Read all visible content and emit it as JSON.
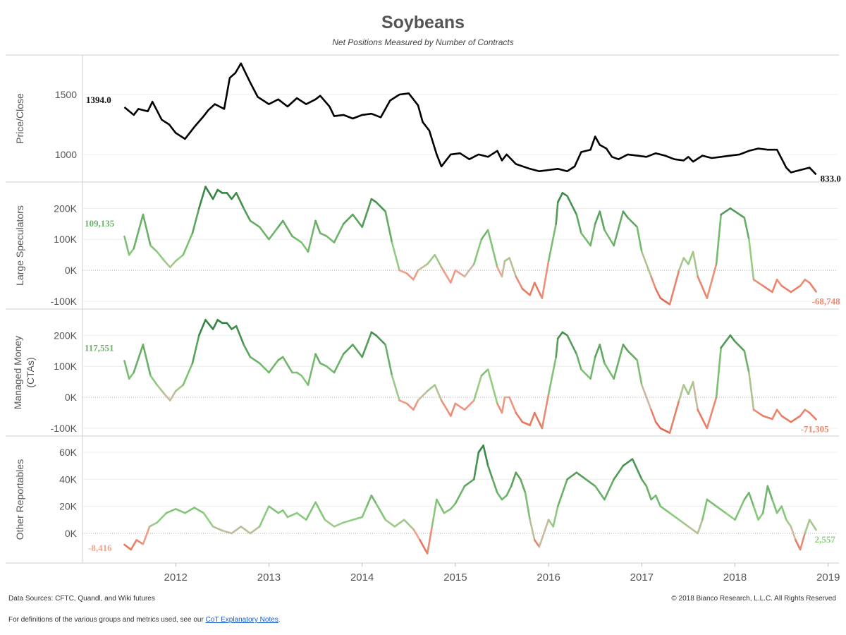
{
  "title": "Soybeans",
  "subtitle": "Net Positions Measured by Number of Contracts",
  "footer": {
    "sources": "Data Sources: CFTC, Quandl, and Wiki futures",
    "copyright": "© 2018 Bianco Research, L.L.C. All Rights Reserved",
    "definitions_prefix": "For definitions of the various groups and metrics used, see our",
    "definitions_link": "CoT Explanatory Notes",
    "definitions_suffix": "."
  },
  "colors": {
    "price_line": "#000000",
    "positive_dark": "#2e7d3e",
    "positive_light": "#8fcf80",
    "neutral": "#cbb8a0",
    "negative_light": "#f2a58e",
    "negative_dark": "#e06048",
    "grid": "#ececec",
    "zero_line": "#aaaaaa"
  },
  "chart_data": [
    {
      "type": "line",
      "panel": "price",
      "ylabel": "Price/Close",
      "ylim": [
        770,
        1830
      ],
      "yticks": [
        1000,
        1500
      ],
      "ytick_labels": [
        "1000",
        "1500"
      ],
      "start_label": "1394.0",
      "end_label": "833.0",
      "series": [
        {
          "x": [
            2011.45,
            2011.55,
            2011.6,
            2011.7,
            2011.75,
            2011.85,
            2011.93,
            2012.0,
            2012.1,
            2012.2,
            2012.3,
            2012.35,
            2012.42,
            2012.52,
            2012.58,
            2012.64,
            2012.7,
            2012.8,
            2012.88,
            2013.0,
            2013.1,
            2013.2,
            2013.3,
            2013.4,
            2013.5,
            2013.55,
            2013.65,
            2013.7,
            2013.8,
            2013.9,
            2014.0,
            2014.1,
            2014.2,
            2014.3,
            2014.4,
            2014.5,
            2014.6,
            2014.65,
            2014.72,
            2014.8,
            2014.85,
            2014.95,
            2015.05,
            2015.15,
            2015.25,
            2015.35,
            2015.45,
            2015.5,
            2015.55,
            2015.65,
            2015.8,
            2015.9,
            2016.0,
            2016.1,
            2016.2,
            2016.28,
            2016.35,
            2016.45,
            2016.5,
            2016.55,
            2016.62,
            2016.68,
            2016.75,
            2016.85,
            2016.95,
            2017.05,
            2017.15,
            2017.25,
            2017.35,
            2017.45,
            2017.5,
            2017.55,
            2017.65,
            2017.75,
            2017.85,
            2017.95,
            2018.05,
            2018.15,
            2018.25,
            2018.35,
            2018.45,
            2018.55,
            2018.6,
            2018.7,
            2018.8,
            2018.87
          ],
          "y": [
            1394,
            1330,
            1380,
            1360,
            1440,
            1290,
            1250,
            1180,
            1130,
            1230,
            1320,
            1370,
            1420,
            1380,
            1640,
            1680,
            1760,
            1600,
            1480,
            1420,
            1460,
            1400,
            1470,
            1420,
            1460,
            1490,
            1400,
            1320,
            1330,
            1300,
            1330,
            1340,
            1310,
            1450,
            1500,
            1510,
            1410,
            1270,
            1200,
            1000,
            900,
            1000,
            1010,
            960,
            1000,
            980,
            1030,
            950,
            1000,
            920,
            880,
            860,
            870,
            880,
            860,
            900,
            1020,
            1040,
            1150,
            1080,
            1050,
            980,
            960,
            1000,
            990,
            980,
            1010,
            990,
            960,
            950,
            980,
            940,
            990,
            970,
            980,
            990,
            1000,
            1030,
            1050,
            1040,
            1040,
            890,
            850,
            870,
            890,
            833
          ]
        }
      ]
    },
    {
      "type": "line",
      "panel": "large_speculators",
      "ylabel": "Large Speculators",
      "ylim": [
        -125000,
        285000
      ],
      "yticks": [
        -100000,
        0,
        100000,
        200000
      ],
      "ytick_labels": [
        "-100K",
        "0K",
        "100K",
        "200K"
      ],
      "start_label": "109,135",
      "end_label": "-68,748",
      "series": [
        {
          "x": [
            2011.45,
            2011.5,
            2011.55,
            2011.65,
            2011.73,
            2011.8,
            2011.88,
            2011.94,
            2012.0,
            2012.08,
            2012.18,
            2012.25,
            2012.32,
            2012.4,
            2012.45,
            2012.5,
            2012.55,
            2012.6,
            2012.65,
            2012.73,
            2012.8,
            2012.9,
            2013.0,
            2013.1,
            2013.15,
            2013.25,
            2013.3,
            2013.35,
            2013.42,
            2013.5,
            2013.55,
            2013.62,
            2013.7,
            2013.8,
            2013.9,
            2014.0,
            2014.1,
            2014.15,
            2014.25,
            2014.32,
            2014.4,
            2014.48,
            2014.55,
            2014.6,
            2014.7,
            2014.78,
            2014.85,
            2014.95,
            2015.0,
            2015.1,
            2015.2,
            2015.28,
            2015.35,
            2015.45,
            2015.5,
            2015.53,
            2015.58,
            2015.65,
            2015.72,
            2015.8,
            2015.85,
            2015.93,
            2016.0,
            2016.08,
            2016.1,
            2016.15,
            2016.2,
            2016.3,
            2016.35,
            2016.45,
            2016.5,
            2016.55,
            2016.6,
            2016.7,
            2016.8,
            2016.85,
            2016.95,
            2017.0,
            2017.1,
            2017.15,
            2017.2,
            2017.3,
            2017.4,
            2017.45,
            2017.5,
            2017.55,
            2017.6,
            2017.7,
            2017.8,
            2017.85,
            2017.95,
            2018.0,
            2018.1,
            2018.15,
            2018.2,
            2018.25,
            2018.3,
            2018.4,
            2018.45,
            2018.5,
            2018.6,
            2018.7,
            2018.75,
            2018.8,
            2018.87
          ],
          "y": [
            109135,
            50000,
            70000,
            180000,
            80000,
            60000,
            30000,
            10000,
            30000,
            50000,
            120000,
            200000,
            270000,
            230000,
            260000,
            250000,
            250000,
            230000,
            250000,
            200000,
            160000,
            140000,
            100000,
            140000,
            160000,
            110000,
            100000,
            90000,
            60000,
            160000,
            120000,
            110000,
            90000,
            150000,
            180000,
            140000,
            230000,
            220000,
            190000,
            90000,
            0,
            -10000,
            -30000,
            0,
            20000,
            50000,
            10000,
            -40000,
            0,
            -20000,
            20000,
            100000,
            130000,
            10000,
            -20000,
            30000,
            40000,
            -20000,
            -60000,
            -80000,
            -40000,
            -90000,
            30000,
            150000,
            220000,
            250000,
            240000,
            180000,
            120000,
            80000,
            150000,
            190000,
            130000,
            80000,
            190000,
            170000,
            140000,
            60000,
            -20000,
            -60000,
            -90000,
            -110000,
            0,
            40000,
            20000,
            60000,
            -20000,
            -90000,
            20000,
            180000,
            200000,
            190000,
            170000,
            100000,
            -30000,
            -40000,
            -50000,
            -70000,
            -30000,
            -50000,
            -70000,
            -50000,
            -30000,
            -40000,
            -68748
          ]
        }
      ]
    },
    {
      "type": "line",
      "panel": "managed_money",
      "ylabel": "Managed Money (CTAs)",
      "ylim": [
        -125000,
        285000
      ],
      "yticks": [
        -100000,
        0,
        100000,
        200000
      ],
      "ytick_labels": [
        "-100K",
        "0K",
        "100K",
        "200K"
      ],
      "start_label": "117,551",
      "end_label": "-71,305",
      "series": [
        {
          "x": [
            2011.45,
            2011.5,
            2011.55,
            2011.65,
            2011.73,
            2011.8,
            2011.88,
            2011.94,
            2012.0,
            2012.08,
            2012.18,
            2012.25,
            2012.32,
            2012.4,
            2012.45,
            2012.5,
            2012.55,
            2012.6,
            2012.65,
            2012.73,
            2012.8,
            2012.9,
            2013.0,
            2013.1,
            2013.15,
            2013.25,
            2013.3,
            2013.35,
            2013.42,
            2013.5,
            2013.55,
            2013.62,
            2013.7,
            2013.8,
            2013.9,
            2014.0,
            2014.1,
            2014.15,
            2014.25,
            2014.32,
            2014.4,
            2014.48,
            2014.55,
            2014.6,
            2014.7,
            2014.78,
            2014.85,
            2014.95,
            2015.0,
            2015.1,
            2015.2,
            2015.28,
            2015.35,
            2015.45,
            2015.5,
            2015.53,
            2015.58,
            2015.65,
            2015.72,
            2015.8,
            2015.85,
            2015.93,
            2016.0,
            2016.08,
            2016.1,
            2016.15,
            2016.2,
            2016.3,
            2016.35,
            2016.45,
            2016.5,
            2016.55,
            2016.6,
            2016.7,
            2016.8,
            2016.85,
            2016.95,
            2017.0,
            2017.1,
            2017.15,
            2017.2,
            2017.3,
            2017.4,
            2017.45,
            2017.5,
            2017.55,
            2017.6,
            2017.7,
            2017.8,
            2017.85,
            2017.95,
            2018.0,
            2018.1,
            2018.15,
            2018.2,
            2018.25,
            2018.3,
            2018.4,
            2018.45,
            2018.5,
            2018.6,
            2018.7,
            2018.75,
            2018.8,
            2018.87
          ],
          "y": [
            117551,
            60000,
            80000,
            170000,
            70000,
            40000,
            10000,
            -10000,
            20000,
            40000,
            110000,
            200000,
            250000,
            220000,
            250000,
            240000,
            240000,
            220000,
            230000,
            170000,
            130000,
            110000,
            80000,
            120000,
            130000,
            80000,
            80000,
            70000,
            40000,
            140000,
            110000,
            100000,
            80000,
            140000,
            170000,
            130000,
            210000,
            200000,
            170000,
            70000,
            -10000,
            -20000,
            -40000,
            -10000,
            20000,
            40000,
            -10000,
            -60000,
            -20000,
            -40000,
            -10000,
            70000,
            90000,
            -20000,
            -50000,
            0,
            0,
            -50000,
            -80000,
            -90000,
            -50000,
            -100000,
            10000,
            130000,
            190000,
            210000,
            200000,
            140000,
            90000,
            60000,
            130000,
            170000,
            110000,
            60000,
            170000,
            150000,
            120000,
            40000,
            -40000,
            -80000,
            -100000,
            -115000,
            -10000,
            40000,
            10000,
            50000,
            -40000,
            -100000,
            0,
            160000,
            200000,
            180000,
            150000,
            80000,
            -40000,
            -50000,
            -60000,
            -70000,
            -40000,
            -60000,
            -80000,
            -60000,
            -40000,
            -50000,
            -71305
          ]
        }
      ]
    },
    {
      "type": "line",
      "panel": "other_reportables",
      "ylabel": "Other Reportables",
      "ylim": [
        -22000,
        72000
      ],
      "yticks": [
        0,
        20000,
        40000,
        60000
      ],
      "ytick_labels": [
        "0K",
        "20K",
        "40K",
        "60K"
      ],
      "start_label": "-8,416",
      "end_label": "2,557",
      "series": [
        {
          "x": [
            2011.45,
            2011.52,
            2011.58,
            2011.65,
            2011.72,
            2011.8,
            2011.9,
            2012.0,
            2012.1,
            2012.2,
            2012.3,
            2012.4,
            2012.5,
            2012.6,
            2012.7,
            2012.8,
            2012.9,
            2013.0,
            2013.1,
            2013.15,
            2013.2,
            2013.3,
            2013.4,
            2013.5,
            2013.6,
            2013.7,
            2013.8,
            2013.9,
            2014.0,
            2014.05,
            2014.1,
            2014.15,
            2014.25,
            2014.35,
            2014.45,
            2014.55,
            2014.62,
            2014.7,
            2014.75,
            2014.8,
            2014.88,
            2014.95,
            2015.0,
            2015.1,
            2015.2,
            2015.25,
            2015.3,
            2015.35,
            2015.4,
            2015.45,
            2015.5,
            2015.55,
            2015.6,
            2015.65,
            2015.7,
            2015.75,
            2015.8,
            2015.85,
            2015.9,
            2016.0,
            2016.05,
            2016.1,
            2016.2,
            2016.3,
            2016.4,
            2016.5,
            2016.6,
            2016.7,
            2016.8,
            2016.9,
            2017.0,
            2017.05,
            2017.1,
            2017.15,
            2017.2,
            2017.3,
            2017.4,
            2017.5,
            2017.6,
            2017.65,
            2017.7,
            2017.8,
            2017.9,
            2018.0,
            2018.1,
            2018.15,
            2018.2,
            2018.25,
            2018.3,
            2018.35,
            2018.4,
            2018.45,
            2018.5,
            2018.55,
            2018.6,
            2018.65,
            2018.7,
            2018.75,
            2018.8,
            2018.87
          ],
          "y": [
            -8416,
            -12000,
            -5000,
            -8000,
            5000,
            8000,
            15000,
            18000,
            15000,
            19000,
            15000,
            5000,
            2000,
            0,
            5000,
            0,
            5000,
            20000,
            15000,
            17000,
            12000,
            15000,
            10000,
            23000,
            10000,
            5000,
            8000,
            10000,
            12000,
            20000,
            28000,
            22000,
            10000,
            5000,
            10000,
            3000,
            -5000,
            -15000,
            5000,
            25000,
            15000,
            18000,
            22000,
            35000,
            40000,
            60000,
            65000,
            50000,
            40000,
            30000,
            25000,
            28000,
            35000,
            45000,
            40000,
            30000,
            10000,
            -5000,
            -10000,
            10000,
            5000,
            20000,
            40000,
            45000,
            40000,
            35000,
            25000,
            40000,
            50000,
            55000,
            40000,
            35000,
            25000,
            28000,
            20000,
            15000,
            10000,
            5000,
            0,
            10000,
            25000,
            20000,
            15000,
            10000,
            25000,
            30000,
            20000,
            10000,
            15000,
            35000,
            25000,
            15000,
            20000,
            10000,
            5000,
            -5000,
            -12000,
            0,
            10000,
            2557
          ]
        }
      ]
    }
  ],
  "x_axis": {
    "xlim": [
      2011.0,
      2019.1
    ],
    "ticks": [
      2012,
      2013,
      2014,
      2015,
      2016,
      2017,
      2018,
      2019
    ],
    "tick_labels": [
      "2012",
      "2013",
      "2014",
      "2015",
      "2016",
      "2017",
      "2018",
      "2019"
    ]
  }
}
